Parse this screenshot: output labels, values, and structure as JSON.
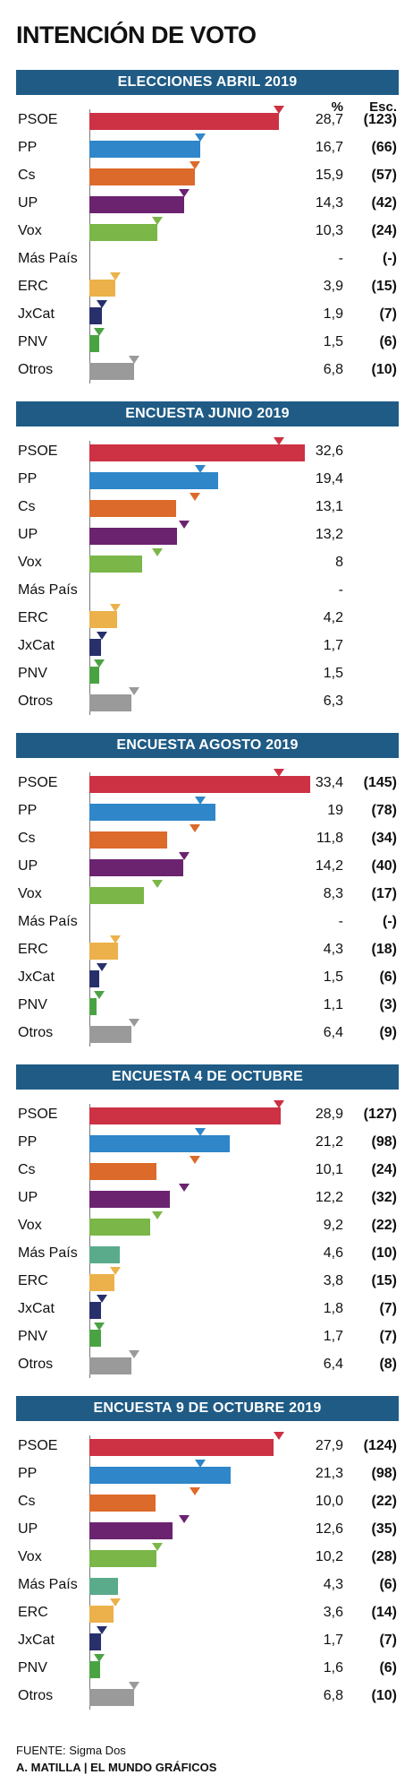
{
  "title": "INTENCIÓN DE VOTO",
  "column_headers": {
    "pct": "%",
    "seats": "Esc."
  },
  "colors": {
    "PSOE": "#cc3144",
    "PP": "#2f86c8",
    "Cs": "#dc6a2a",
    "UP": "#6b2370",
    "Vox": "#7ab648",
    "Más País": "#5aab8c",
    "ERC": "#ecb14a",
    "JxCat": "#27306b",
    "PNV": "#4aa343",
    "Otros": "#9a9a9a",
    "banner": "#1f5b85"
  },
  "chart_data": [
    {
      "type": "bar",
      "title": "ELECCIONES  ABRIL 2019",
      "categories": [
        "PSOE",
        "PP",
        "Cs",
        "UP",
        "Vox",
        "Más País",
        "ERC",
        "JxCat",
        "PNV",
        "Otros"
      ],
      "values": [
        28.7,
        16.7,
        15.9,
        14.3,
        10.3,
        null,
        3.9,
        1.9,
        1.5,
        6.8
      ],
      "value_labels": [
        "28,7",
        "16,7",
        "15,9",
        "14,3",
        "10,3",
        "-",
        "3,9",
        "1,9",
        "1,5",
        "6,8"
      ],
      "seats": [
        "(123)",
        "(66)",
        "(57)",
        "(42)",
        "(24)",
        "(-)",
        "(15)",
        "(7)",
        "(6)",
        "(10)"
      ],
      "reference": [
        28.7,
        16.7,
        15.9,
        14.3,
        10.3,
        null,
        3.9,
        1.9,
        1.5,
        6.8
      ]
    },
    {
      "type": "bar",
      "title": "ENCUESTA JUNIO 2019",
      "categories": [
        "PSOE",
        "PP",
        "Cs",
        "UP",
        "Vox",
        "Más País",
        "ERC",
        "JxCat",
        "PNV",
        "Otros"
      ],
      "values": [
        32.6,
        19.4,
        13.1,
        13.2,
        8,
        null,
        4.2,
        1.7,
        1.5,
        6.3
      ],
      "value_labels": [
        "32,6",
        "19,4",
        "13,1",
        "13,2",
        "8",
        "-",
        "4,2",
        "1,7",
        "1,5",
        "6,3"
      ],
      "seats": [
        "",
        "",
        "",
        "",
        "",
        "",
        "",
        "",
        "",
        ""
      ],
      "reference": [
        28.7,
        16.7,
        15.9,
        14.3,
        10.3,
        null,
        3.9,
        1.9,
        1.5,
        6.8
      ]
    },
    {
      "type": "bar",
      "title": "ENCUESTA AGOSTO 2019",
      "categories": [
        "PSOE",
        "PP",
        "Cs",
        "UP",
        "Vox",
        "Más País",
        "ERC",
        "JxCat",
        "PNV",
        "Otros"
      ],
      "values": [
        33.4,
        19,
        11.8,
        14.2,
        8.3,
        null,
        4.3,
        1.5,
        1.1,
        6.4
      ],
      "value_labels": [
        "33,4",
        "19",
        "11,8",
        "14,2",
        "8,3",
        "-",
        "4,3",
        "1,5",
        "1,1",
        "6,4"
      ],
      "seats": [
        "(145)",
        "(78)",
        "(34)",
        "(40)",
        "(17)",
        "(-)",
        "(18)",
        "(6)",
        "(3)",
        "(9)"
      ],
      "reference": [
        28.7,
        16.7,
        15.9,
        14.3,
        10.3,
        null,
        3.9,
        1.9,
        1.5,
        6.8
      ]
    },
    {
      "type": "bar",
      "title": "ENCUESTA 4 DE OCTUBRE",
      "categories": [
        "PSOE",
        "PP",
        "Cs",
        "UP",
        "Vox",
        "Más País",
        "ERC",
        "JxCat",
        "PNV",
        "Otros"
      ],
      "values": [
        28.9,
        21.2,
        10.1,
        12.2,
        9.2,
        4.6,
        3.8,
        1.8,
        1.7,
        6.4
      ],
      "value_labels": [
        "28,9",
        "21,2",
        "10,1",
        "12,2",
        "9,2",
        "4,6",
        "3,8",
        "1,8",
        "1,7",
        "6,4"
      ],
      "seats": [
        "(127)",
        "(98)",
        "(24)",
        "(32)",
        "(22)",
        "(10)",
        "(15)",
        "(7)",
        "(7)",
        "(8)"
      ],
      "reference": [
        28.7,
        16.7,
        15.9,
        14.3,
        10.3,
        null,
        3.9,
        1.9,
        1.5,
        6.8
      ]
    },
    {
      "type": "bar",
      "title": "ENCUESTA 9 DE OCTUBRE 2019",
      "categories": [
        "PSOE",
        "PP",
        "Cs",
        "UP",
        "Vox",
        "Más País",
        "ERC",
        "JxCat",
        "PNV",
        "Otros"
      ],
      "values": [
        27.9,
        21.3,
        10.0,
        12.6,
        10.2,
        4.3,
        3.6,
        1.7,
        1.6,
        6.8
      ],
      "value_labels": [
        "27,9",
        "21,3",
        "10,0",
        "12,6",
        "10,2",
        "4,3",
        "3,6",
        "1,7",
        "1,6",
        "6,8"
      ],
      "seats": [
        "(124)",
        "(98)",
        "(22)",
        "(35)",
        "(28)",
        "(6)",
        "(14)",
        "(7)",
        "(6)",
        "(10)"
      ],
      "reference": [
        28.7,
        16.7,
        15.9,
        14.3,
        10.3,
        null,
        3.9,
        1.9,
        1.5,
        6.8
      ]
    }
  ],
  "footer": {
    "source": "FUENTE: Sigma Dos",
    "credit": "A. MATILLA | EL MUNDO GRÁFICOS"
  }
}
